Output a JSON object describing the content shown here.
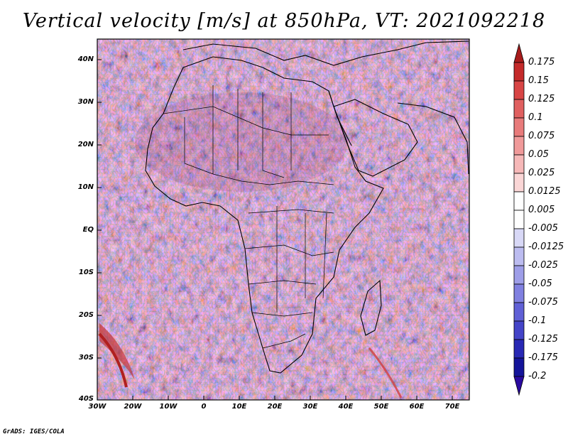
{
  "title": "Vertical velocity [m/s] at 850hPa, VT: 2021092218",
  "credit": "GrADS: IGES/COLA",
  "axes": {
    "lat_labels": [
      "40N",
      "30N",
      "20N",
      "10N",
      "EQ",
      "10S",
      "20S",
      "30S",
      "40S"
    ],
    "lon_labels": [
      "30W",
      "20W",
      "10W",
      "0",
      "10E",
      "20E",
      "30E",
      "40E",
      "50E",
      "60E",
      "70E"
    ]
  },
  "colorbar": {
    "labels": [
      "0.175",
      "0.15",
      "0.125",
      "0.1",
      "0.075",
      "0.05",
      "0.025",
      "0.0125",
      "0.005",
      "-0.005",
      "-0.0125",
      "-0.025",
      "-0.05",
      "-0.075",
      "-0.1",
      "-0.125",
      "-0.175",
      "-0.2"
    ],
    "colors": [
      "#a81c1c",
      "#c42a2a",
      "#d84545",
      "#e06060",
      "#e87b7b",
      "#f09a9a",
      "#f6b8b8",
      "#fad6d6",
      "#ffffff",
      "#ffffff",
      "#d8d8f6",
      "#bcbcf0",
      "#9e9ee8",
      "#8080e0",
      "#6060d6",
      "#4444c8",
      "#2828b4",
      "#14149a",
      "#2a0aa0"
    ]
  }
}
